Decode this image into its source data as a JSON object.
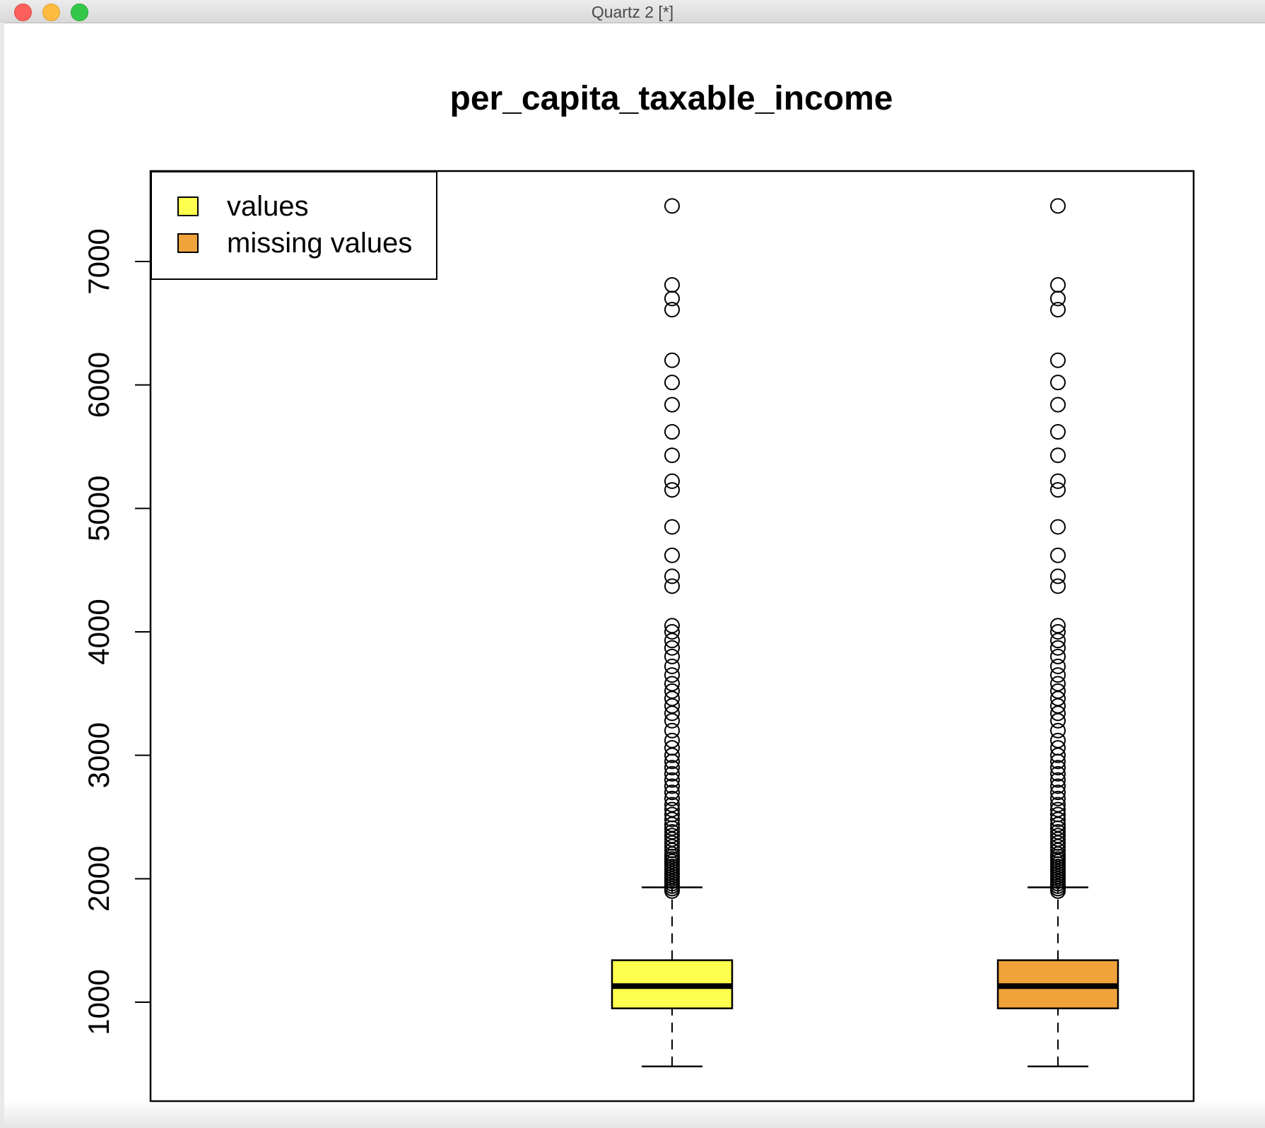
{
  "window": {
    "title": "Quartz 2 [*]"
  },
  "chart_data": {
    "type": "boxplot",
    "title": "per_capita_taxable_income",
    "xlabel": "",
    "ylabel": "",
    "ylim": [
      300,
      7700
    ],
    "yticks": [
      "1000",
      "2000",
      "3000",
      "4000",
      "5000",
      "6000",
      "7000"
    ],
    "legend": {
      "placement": "top-left",
      "entries": [
        {
          "label": "values",
          "color": "#ffff4d"
        },
        {
          "label": "missing values",
          "color": "#f0a33a"
        }
      ]
    },
    "boxes": [
      {
        "name": "values",
        "color": "#ffff4d",
        "whisker_low": 480,
        "q1": 950,
        "median": 1130,
        "q3": 1340,
        "whisker_high": 1930,
        "outliers": [
          1900,
          1920,
          1940,
          1960,
          1980,
          2000,
          2020,
          2040,
          2060,
          2080,
          2100,
          2120,
          2140,
          2160,
          2180,
          2200,
          2230,
          2260,
          2290,
          2320,
          2350,
          2380,
          2410,
          2440,
          2480,
          2520,
          2560,
          2600,
          2650,
          2700,
          2750,
          2800,
          2850,
          2900,
          2950,
          3000,
          3060,
          3120,
          3200,
          3280,
          3340,
          3400,
          3460,
          3520,
          3580,
          3650,
          3720,
          3800,
          3870,
          3930,
          4000,
          4050,
          4370,
          4450,
          4620,
          4850,
          5150,
          5220,
          5430,
          5620,
          5840,
          6020,
          6200,
          6610,
          6700,
          6810,
          7450
        ]
      },
      {
        "name": "missing values",
        "color": "#f0a33a",
        "whisker_low": 480,
        "q1": 950,
        "median": 1130,
        "q3": 1340,
        "whisker_high": 1930,
        "outliers": [
          1900,
          1920,
          1940,
          1960,
          1980,
          2000,
          2020,
          2040,
          2060,
          2080,
          2100,
          2120,
          2140,
          2160,
          2180,
          2200,
          2230,
          2260,
          2290,
          2320,
          2350,
          2380,
          2410,
          2440,
          2480,
          2520,
          2560,
          2600,
          2650,
          2700,
          2750,
          2800,
          2850,
          2900,
          2950,
          3000,
          3060,
          3120,
          3200,
          3280,
          3340,
          3400,
          3460,
          3520,
          3580,
          3650,
          3720,
          3800,
          3870,
          3930,
          4000,
          4050,
          4370,
          4450,
          4620,
          4850,
          5150,
          5220,
          5430,
          5620,
          5840,
          6020,
          6200,
          6610,
          6700,
          6810,
          7450
        ]
      }
    ]
  }
}
